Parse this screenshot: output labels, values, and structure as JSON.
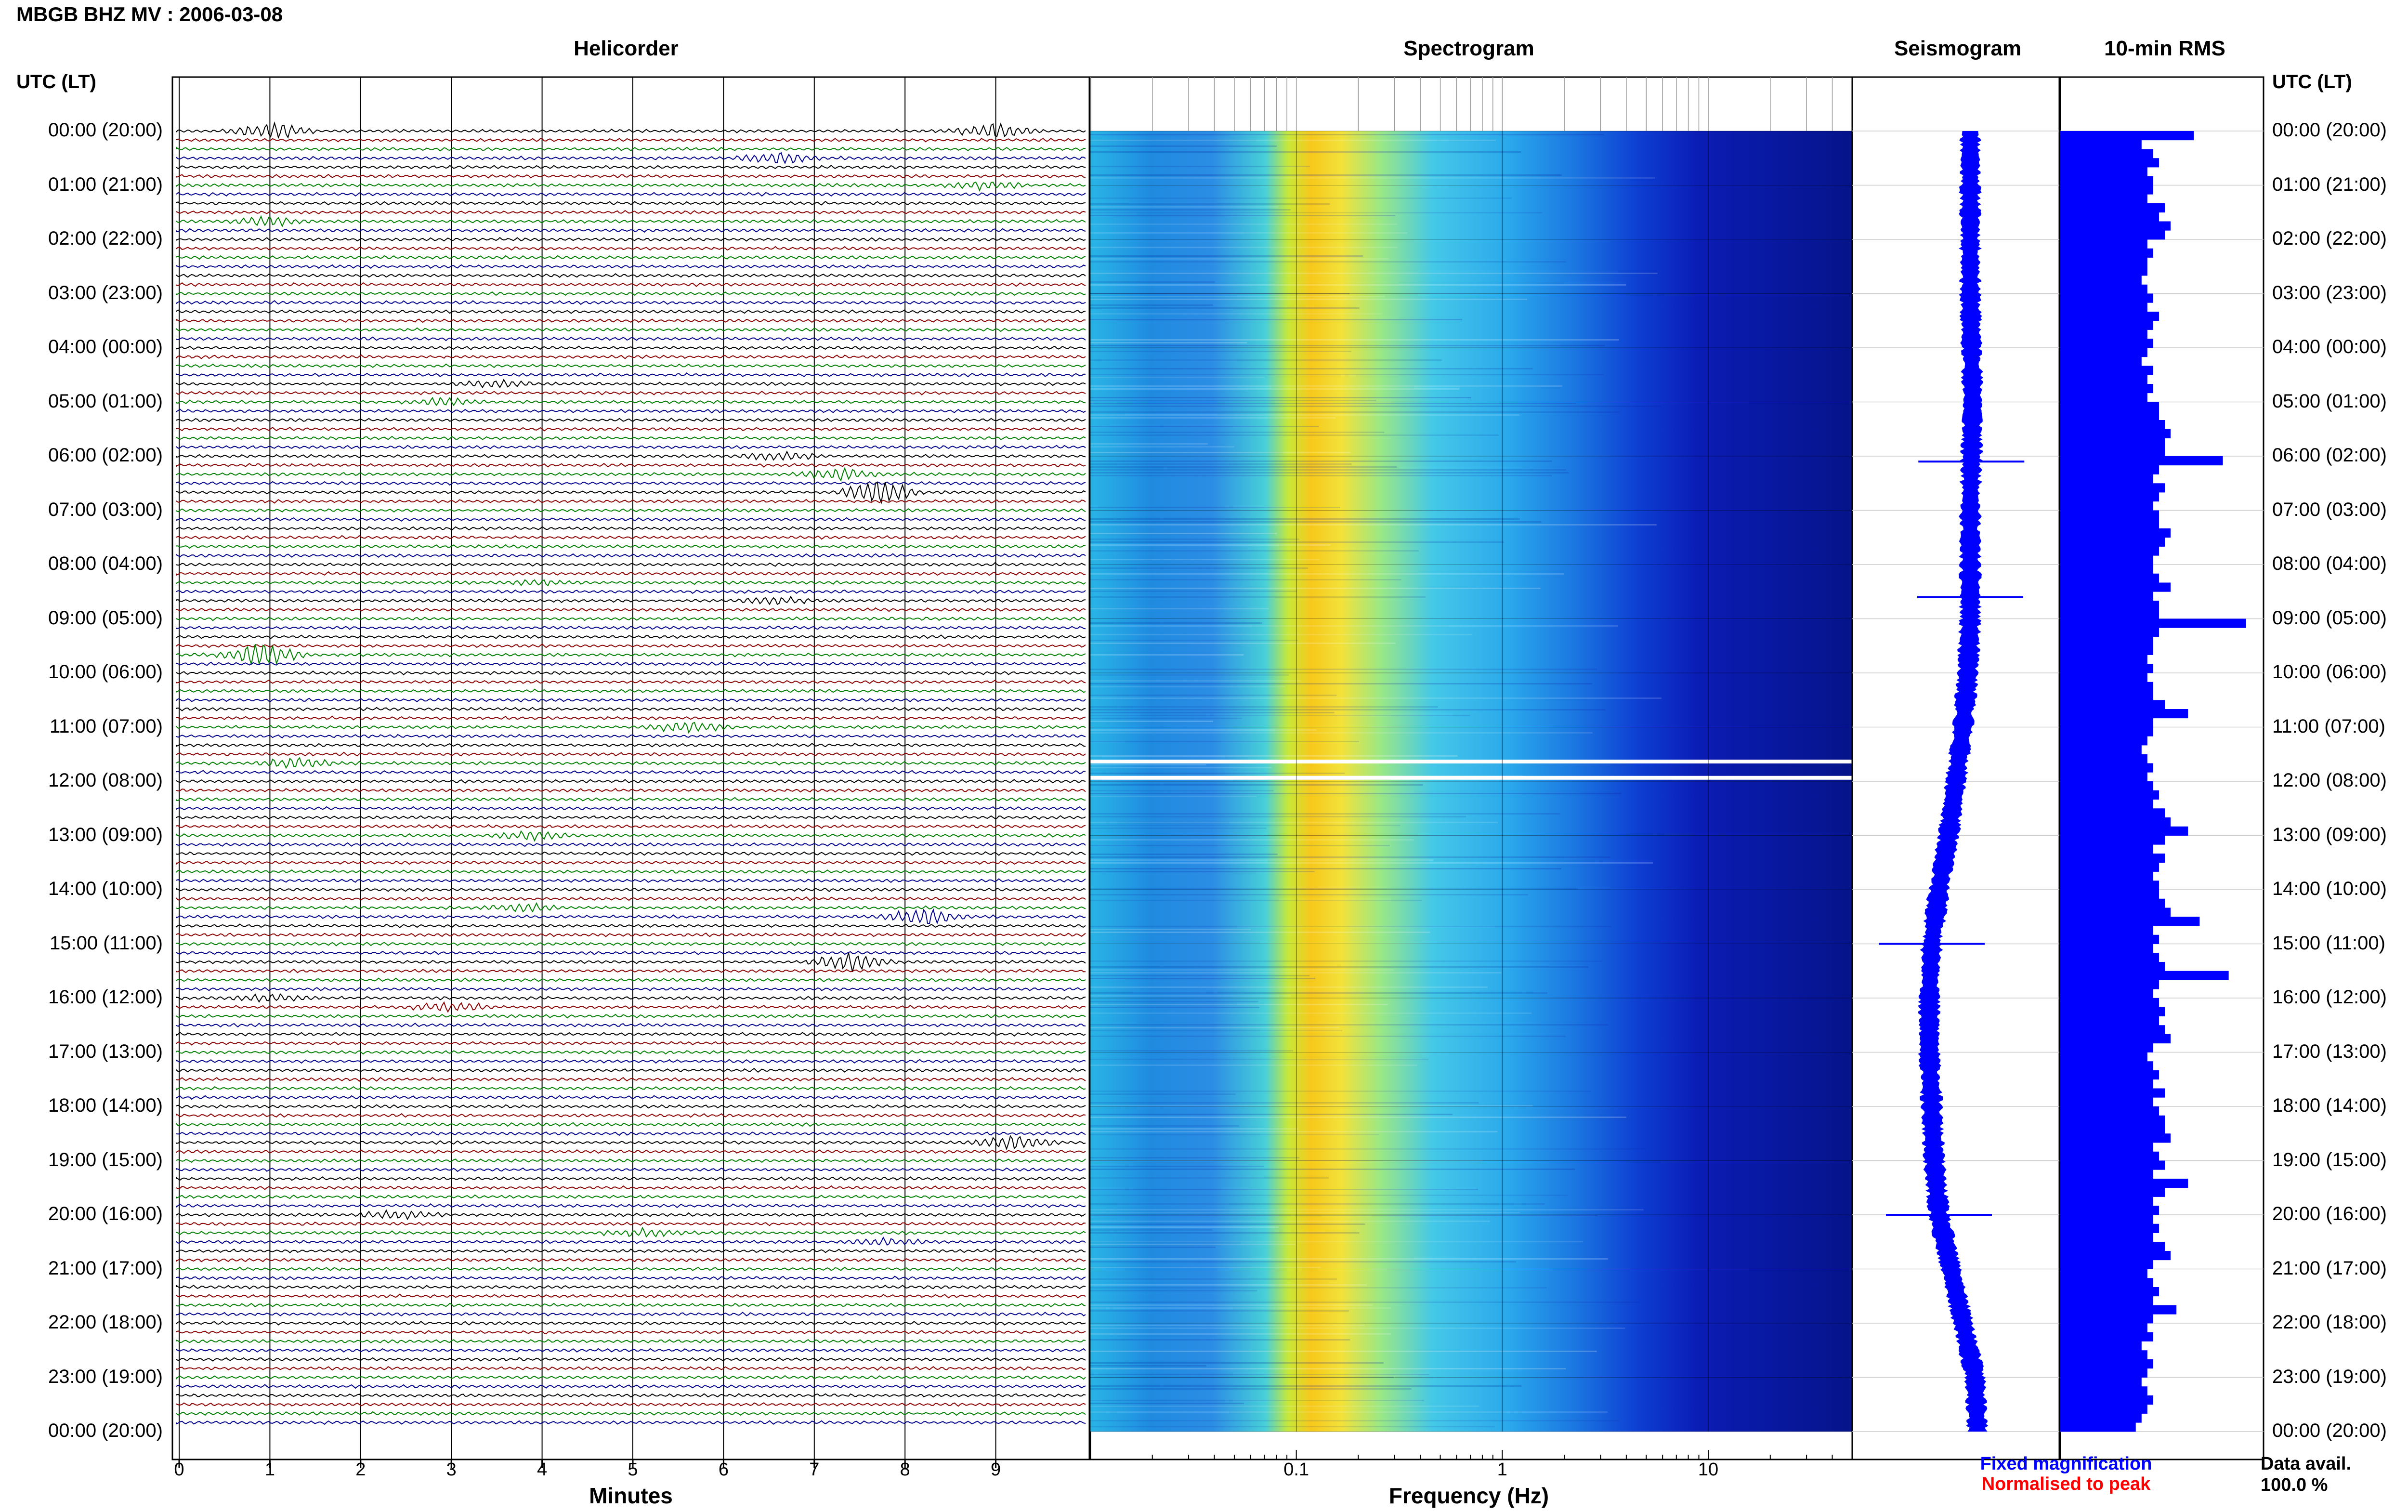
{
  "title": "MBGB BHZ MV : 2006-03-08",
  "headers": {
    "helicorder": "Helicorder",
    "spectrogram": "Spectrogram",
    "seismogram": "Seismogram",
    "rms": "10-min RMS"
  },
  "axis_headers": {
    "left": "UTC (LT)",
    "right": "UTC (LT)"
  },
  "time_labels": [
    "00:00 (20:00)",
    "01:00 (21:00)",
    "02:00 (22:00)",
    "03:00 (23:00)",
    "04:00 (00:00)",
    "05:00 (01:00)",
    "06:00 (02:00)",
    "07:00 (03:00)",
    "08:00 (04:00)",
    "09:00 (05:00)",
    "10:00 (06:00)",
    "11:00 (07:00)",
    "12:00 (08:00)",
    "13:00 (09:00)",
    "14:00 (10:00)",
    "15:00 (11:00)",
    "16:00 (12:00)",
    "17:00 (13:00)",
    "18:00 (14:00)",
    "19:00 (15:00)",
    "20:00 (16:00)",
    "21:00 (17:00)",
    "22:00 (18:00)",
    "23:00 (19:00)",
    "00:00 (20:00)"
  ],
  "x_labels": {
    "minutes": "Minutes",
    "frequency": "Frequency (Hz)"
  },
  "legend": {
    "fixed": "Fixed magnification",
    "normalised": "Normalised to peak"
  },
  "data_avail": {
    "label": "Data avail.",
    "value": "100.0 %"
  },
  "colors": {
    "trace_cycle": [
      "#000000",
      "#8b0000",
      "#008000",
      "#00008b"
    ],
    "seismogram": "#0000ff",
    "rms_bar": "#0000ff",
    "spectrogram_colormap": "jet"
  },
  "chart_data": [
    {
      "type": "line",
      "panel": "helicorder",
      "xlabel": "Minutes",
      "x_ticks": [
        0,
        1,
        2,
        3,
        4,
        5,
        6,
        7,
        8,
        9
      ],
      "xlim": [
        0,
        10
      ],
      "rows": 144,
      "row_minutes": 10,
      "events": [
        {
          "row": 0,
          "minute": 1.0,
          "amp": 3
        },
        {
          "row": 0,
          "minute": 9.0,
          "amp": 3
        },
        {
          "row": 3,
          "minute": 6.6,
          "amp": 2
        },
        {
          "row": 6,
          "minute": 8.9,
          "amp": 1.5
        },
        {
          "row": 10,
          "minute": 1.0,
          "amp": 1.5
        },
        {
          "row": 28,
          "minute": 3.5,
          "amp": 1.2
        },
        {
          "row": 30,
          "minute": 2.9,
          "amp": 1.2
        },
        {
          "row": 36,
          "minute": 6.6,
          "amp": 1.5
        },
        {
          "row": 38,
          "minute": 7.3,
          "amp": 2
        },
        {
          "row": 40,
          "minute": 7.7,
          "amp": 4
        },
        {
          "row": 50,
          "minute": 4.0,
          "amp": 1
        },
        {
          "row": 52,
          "minute": 6.6,
          "amp": 1.2
        },
        {
          "row": 58,
          "minute": 0.9,
          "amp": 4.5
        },
        {
          "row": 66,
          "minute": 5.6,
          "amp": 2
        },
        {
          "row": 70,
          "minute": 1.3,
          "amp": 2
        },
        {
          "row": 78,
          "minute": 3.9,
          "amp": 1.5
        },
        {
          "row": 86,
          "minute": 3.8,
          "amp": 1.5
        },
        {
          "row": 87,
          "minute": 8.2,
          "amp": 3
        },
        {
          "row": 92,
          "minute": 7.4,
          "amp": 3.5
        },
        {
          "row": 96,
          "minute": 1.0,
          "amp": 1.2
        },
        {
          "row": 97,
          "minute": 3.0,
          "amp": 2
        },
        {
          "row": 112,
          "minute": 9.2,
          "amp": 2.5
        },
        {
          "row": 120,
          "minute": 2.4,
          "amp": 1.5
        },
        {
          "row": 122,
          "minute": 5.1,
          "amp": 1.5
        },
        {
          "row": 123,
          "minute": 7.8,
          "amp": 1.2
        }
      ]
    },
    {
      "type": "heatmap",
      "panel": "spectrogram",
      "xlabel": "Frequency (Hz)",
      "x_scale": "log",
      "x_ticks": [
        0.1,
        1,
        10
      ],
      "xlim": [
        0.01,
        50
      ],
      "peak_band_hz": [
        0.18,
        0.3
      ],
      "data_gap_hours": [
        11.6,
        11.9
      ]
    },
    {
      "type": "line",
      "panel": "seismogram",
      "offsets": [
        0,
        0,
        0,
        0,
        0.5,
        1,
        0.5,
        0,
        0,
        0,
        -1,
        -3,
        -6,
        -9,
        -13,
        -16,
        -17,
        -17,
        -16,
        -15,
        -13,
        -8,
        -3,
        2,
        3
      ],
      "spikes_hours": [
        6.1,
        8.6,
        15.0,
        20.0
      ]
    },
    {
      "type": "bar",
      "panel": "rms",
      "title": "10-min RMS",
      "orientation": "horizontal",
      "values": [
        2.3,
        1.4,
        1.6,
        1.7,
        1.5,
        1.6,
        1.6,
        1.5,
        1.8,
        1.7,
        1.9,
        1.8,
        1.5,
        1.6,
        1.5,
        1.5,
        1.4,
        1.5,
        1.6,
        1.5,
        1.7,
        1.6,
        1.5,
        1.6,
        1.5,
        1.4,
        1.6,
        1.5,
        1.6,
        1.5,
        1.7,
        1.7,
        1.8,
        1.9,
        1.8,
        1.8,
        2.8,
        1.7,
        1.6,
        1.8,
        1.7,
        1.6,
        1.7,
        1.7,
        1.9,
        1.8,
        1.7,
        1.6,
        1.6,
        1.7,
        1.9,
        1.6,
        1.7,
        1.7,
        3.2,
        1.7,
        1.6,
        1.6,
        1.5,
        1.6,
        1.5,
        1.6,
        1.6,
        1.8,
        2.2,
        1.6,
        1.6,
        1.5,
        1.4,
        1.5,
        1.6,
        1.5,
        1.6,
        1.7,
        1.6,
        1.8,
        1.9,
        2.2,
        1.8,
        1.6,
        1.8,
        1.7,
        1.6,
        1.7,
        1.7,
        1.8,
        1.9,
        2.4,
        1.6,
        1.7,
        1.6,
        1.7,
        1.8,
        2.9,
        1.7,
        1.6,
        1.7,
        1.8,
        1.7,
        1.8,
        1.9,
        1.6,
        1.5,
        1.6,
        1.7,
        1.6,
        1.8,
        1.6,
        1.7,
        1.8,
        1.8,
        1.9,
        1.6,
        1.7,
        1.8,
        1.6,
        2.2,
        1.8,
        1.6,
        1.7,
        1.6,
        1.7,
        1.6,
        1.8,
        1.9,
        1.6,
        1.5,
        1.6,
        1.7,
        1.6,
        2.0,
        1.6,
        1.5,
        1.6,
        1.4,
        1.5,
        1.6,
        1.5,
        1.4,
        1.5,
        1.6,
        1.5,
        1.4,
        1.3
      ],
      "xlim": [
        0,
        3.5
      ]
    }
  ]
}
